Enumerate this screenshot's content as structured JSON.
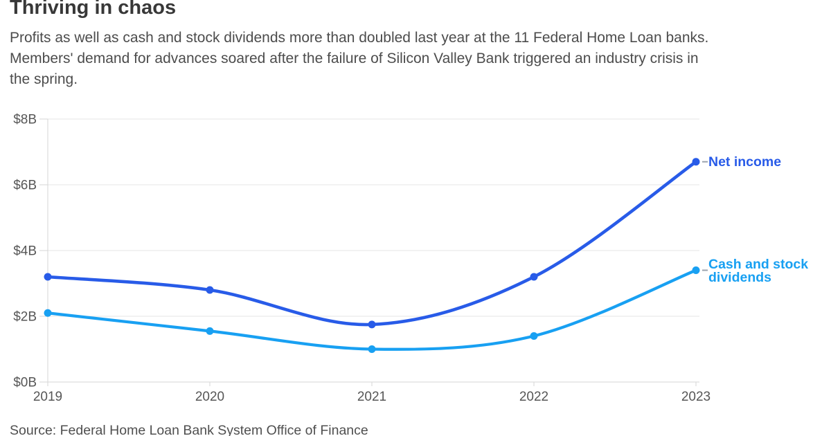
{
  "header": {
    "title": "Thriving in chaos",
    "subtitle": "Profits as well as cash and stock dividends more than doubled last year at the 11 Federal Home Loan banks.\nMembers' demand for advances soared after the failure of Silicon Valley Bank triggered an industry crisis in\nthe spring."
  },
  "source": "Source: Federal Home Loan Bank System Office of Finance",
  "chart_data": {
    "type": "line",
    "title": "Thriving in chaos",
    "categories": [
      "2019",
      "2020",
      "2021",
      "2022",
      "2023"
    ],
    "series": [
      {
        "name": "Net income",
        "label": "Net income",
        "color": "#285BE8",
        "values": [
          3.2,
          2.8,
          1.75,
          3.2,
          6.7
        ]
      },
      {
        "name": "Cash and stock dividends",
        "label": "Cash and stock\ndividends",
        "color": "#18A0F2",
        "values": [
          2.1,
          1.55,
          1.0,
          1.4,
          3.4
        ]
      }
    ],
    "unit": "$B",
    "ylim": [
      0,
      8
    ],
    "yticks": [
      {
        "value": 8,
        "label": "$8B"
      },
      {
        "value": 6,
        "label": "$6B"
      },
      {
        "value": 4,
        "label": "$4B"
      },
      {
        "value": 2,
        "label": "$2B"
      },
      {
        "value": 0,
        "label": "$0B"
      }
    ],
    "grid": "horizontal",
    "legend_position": "end-of-line",
    "colors": {
      "grid": "#e4e4e4",
      "axis": "#d6d6d6",
      "tick_label": "#565656",
      "connector": "#9ba3ae"
    }
  }
}
